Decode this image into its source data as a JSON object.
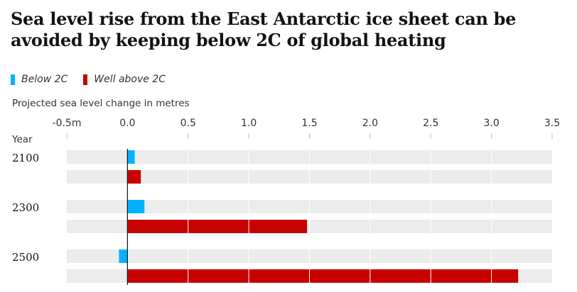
{
  "title": "Sea level rise from the East Antarctic ice sheet can be avoided by keeping below 2C of global heating",
  "legend": [
    {
      "name": "Below 2C",
      "color": "#00b2ff"
    },
    {
      "name": "Well above 2C",
      "color": "#c70000"
    }
  ],
  "chart_data": {
    "type": "bar",
    "orientation": "horizontal",
    "xlabel": "Projected sea level change in metres",
    "ylabel": "Year",
    "xlim": [
      -0.5,
      3.5
    ],
    "x_ticks": [
      "-0.5m",
      "0.0",
      "0.5",
      "1.0",
      "1.5",
      "2.0",
      "2.5",
      "3.0",
      "3.5"
    ],
    "x_tick_values": [
      -0.5,
      0.0,
      0.5,
      1.0,
      1.5,
      2.0,
      2.5,
      3.0,
      3.5
    ],
    "categories": [
      "2100",
      "2300",
      "2500"
    ],
    "series": [
      {
        "name": "Below 2C",
        "color": "#00b2ff",
        "values": [
          0.06,
          0.14,
          -0.07
        ]
      },
      {
        "name": "Well above 2C",
        "color": "#c70000",
        "values": [
          0.11,
          1.48,
          3.22
        ]
      }
    ],
    "grid": true
  }
}
